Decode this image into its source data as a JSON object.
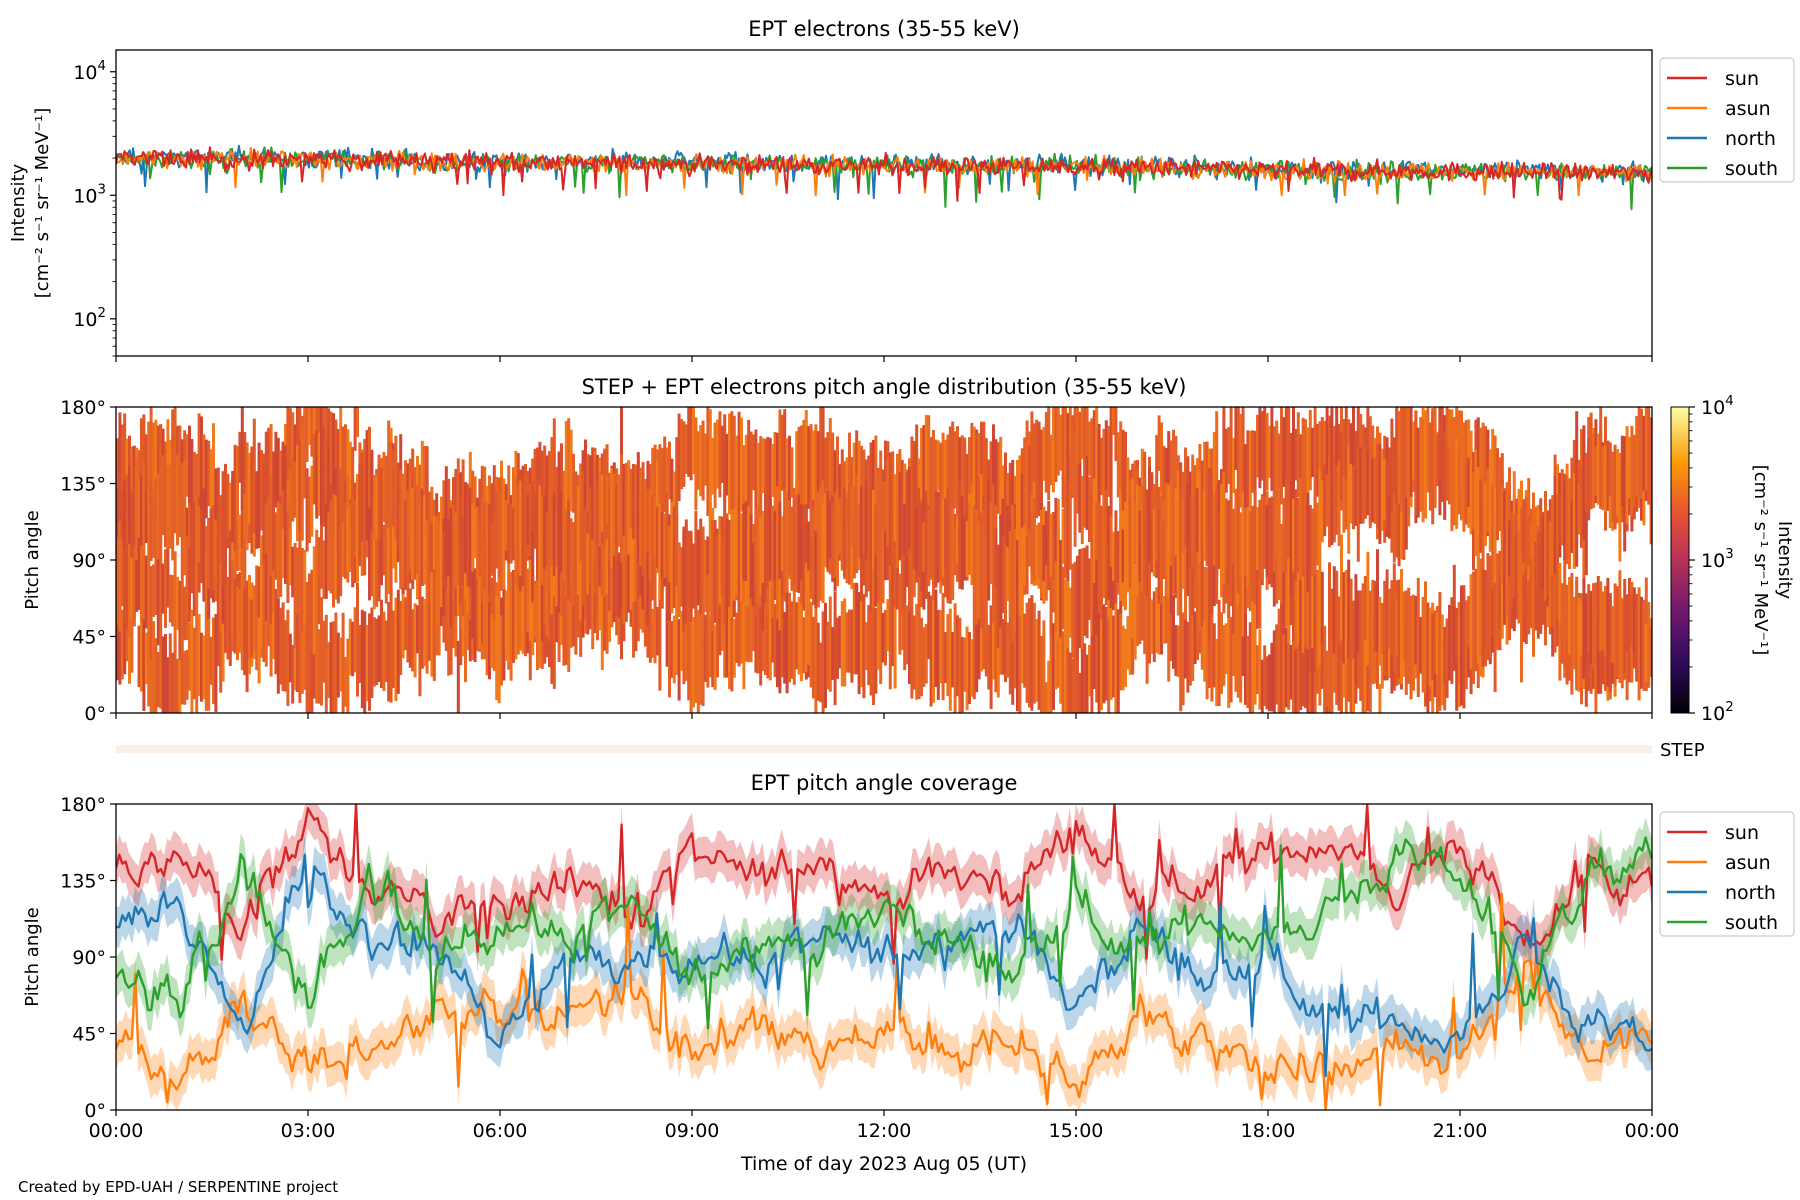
{
  "figure": {
    "credit": "Created by EPD-UAH / SERPENTINE project",
    "x_axis": {
      "label": "Time of day 2023 Aug 05 (UT)",
      "ticks": [
        "00:00",
        "03:00",
        "06:00",
        "09:00",
        "12:00",
        "15:00",
        "18:00",
        "21:00",
        "00:00"
      ],
      "range_hours": [
        0,
        24
      ]
    },
    "step_strip_label": "STEP"
  },
  "colors": {
    "sun": "#d62728",
    "asun": "#ff7f0e",
    "north": "#1f77b4",
    "south": "#2ca02c"
  },
  "chart_data": [
    {
      "type": "line",
      "title": "EPT electrons (35-55 keV)",
      "ylabel_line1": "Intensity",
      "ylabel_line2": "[cm⁻² s⁻¹ sr⁻¹ MeV⁻¹]",
      "yscale": "log",
      "ylim": [
        50,
        15000
      ],
      "yticks": [
        {
          "base": "10",
          "exp": "2",
          "value": 100
        },
        {
          "base": "10",
          "exp": "3",
          "value": 1000
        },
        {
          "base": "10",
          "exp": "4",
          "value": 10000
        }
      ],
      "legend": {
        "placement": "outside-top-right",
        "entries": [
          "sun",
          "asun",
          "north",
          "south"
        ]
      },
      "series": [
        {
          "name": "sun",
          "x_hours": [
            0,
            3,
            6,
            9,
            12,
            15,
            18,
            21,
            24
          ],
          "y": [
            2000,
            1950,
            1850,
            1800,
            1750,
            1700,
            1600,
            1550,
            1500
          ],
          "noise_range": [
            900,
            2700
          ]
        },
        {
          "name": "asun",
          "x_hours": [
            0,
            3,
            6,
            9,
            12,
            15,
            18,
            21,
            24
          ],
          "y": [
            2000,
            1950,
            1850,
            1800,
            1750,
            1700,
            1600,
            1550,
            1500
          ],
          "noise_range": [
            1000,
            3100
          ]
        },
        {
          "name": "north",
          "x_hours": [
            0,
            3,
            6,
            9,
            12,
            15,
            18,
            21,
            24
          ],
          "y": [
            2050,
            2000,
            1900,
            1850,
            1800,
            1750,
            1650,
            1600,
            1550
          ],
          "noise_range": [
            450,
            3000
          ]
        },
        {
          "name": "south",
          "x_hours": [
            0,
            3,
            6,
            9,
            12,
            15,
            18,
            21,
            24
          ],
          "y": [
            2000,
            1950,
            1850,
            1800,
            1750,
            1700,
            1600,
            1550,
            1500
          ],
          "noise_range": [
            700,
            3200
          ]
        }
      ]
    },
    {
      "type": "heatmap",
      "title": "STEP + EPT electrons pitch angle distribution (35-55 keV)",
      "ylabel": "Pitch angle",
      "ylim": [
        0,
        180
      ],
      "yticks": [
        "0°",
        "45°",
        "90°",
        "135°",
        "180°"
      ],
      "ytick_values": [
        0,
        45,
        90,
        135,
        180
      ],
      "colorbar": {
        "label_line1": "Intensity",
        "label_line2": "[cm⁻² s⁻¹ sr⁻¹ MeV⁻¹]",
        "scale": "log",
        "range": [
          100,
          10000
        ],
        "ticks": [
          {
            "base": "10",
            "exp": "2",
            "value": 100
          },
          {
            "base": "10",
            "exp": "3",
            "value": 1000
          },
          {
            "base": "10",
            "exp": "4",
            "value": 10000
          }
        ],
        "colormap": "inferno-like"
      },
      "typical_intensity": 1700
    },
    {
      "type": "line",
      "title": "EPT pitch angle coverage",
      "ylabel": "Pitch angle",
      "ylim": [
        0,
        180
      ],
      "yticks": [
        "0°",
        "45°",
        "90°",
        "135°",
        "180°"
      ],
      "ytick_values": [
        0,
        45,
        90,
        135,
        180
      ],
      "legend": {
        "placement": "outside-top-right",
        "entries": [
          "sun",
          "asun",
          "north",
          "south"
        ]
      },
      "series": [
        {
          "name": "sun",
          "x_hours": [
            0,
            1,
            2,
            3,
            4,
            5,
            6,
            7,
            8,
            9,
            10,
            11,
            12,
            13,
            14,
            15,
            16,
            17,
            18,
            19,
            20,
            21,
            22,
            23,
            24
          ],
          "y": [
            140,
            155,
            110,
            170,
            130,
            115,
            120,
            140,
            110,
            150,
            135,
            150,
            125,
            140,
            130,
            165,
            125,
            135,
            150,
            160,
            130,
            160,
            90,
            140,
            130
          ]
        },
        {
          "name": "asun",
          "x_hours": [
            0,
            1,
            2,
            3,
            4,
            5,
            6,
            7,
            8,
            9,
            10,
            11,
            12,
            13,
            14,
            15,
            16,
            17,
            18,
            19,
            20,
            21,
            22,
            23,
            24
          ],
          "y": [
            40,
            20,
            65,
            25,
            40,
            55,
            60,
            55,
            70,
            30,
            55,
            25,
            45,
            30,
            40,
            15,
            55,
            45,
            30,
            20,
            45,
            25,
            90,
            30,
            50
          ]
        },
        {
          "name": "north",
          "x_hours": [
            0,
            1,
            2,
            3,
            4,
            5,
            6,
            7,
            8,
            9,
            10,
            11,
            12,
            13,
            14,
            15,
            16,
            17,
            18,
            19,
            20,
            21,
            22,
            23,
            24
          ],
          "y": [
            110,
            115,
            40,
            150,
            90,
            100,
            40,
            90,
            80,
            95,
            85,
            100,
            90,
            105,
            110,
            60,
            110,
            75,
            90,
            50,
            55,
            40,
            100,
            45,
            40
          ]
        },
        {
          "name": "south",
          "x_hours": [
            0,
            1,
            2,
            3,
            4,
            5,
            6,
            7,
            8,
            9,
            10,
            11,
            12,
            13,
            14,
            15,
            16,
            17,
            18,
            19,
            20,
            21,
            22,
            23,
            24
          ],
          "y": [
            75,
            60,
            150,
            60,
            130,
            85,
            115,
            100,
            120,
            75,
            105,
            95,
            120,
            100,
            80,
            120,
            90,
            115,
            100,
            120,
            145,
            140,
            70,
            135,
            150
          ]
        }
      ]
    }
  ]
}
